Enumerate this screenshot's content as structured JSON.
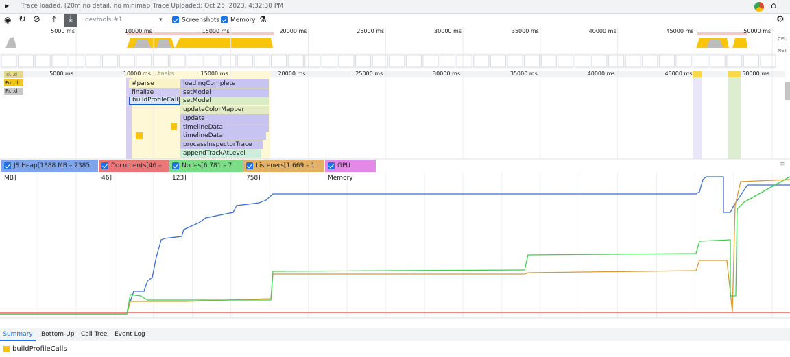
{
  "status": {
    "message": "Trace loaded. [20m no detail, no minimap]Trace Uploaded: Oct 25, 2023, 4:32:30 PM"
  },
  "toolbar": {
    "recording": "devtools #1",
    "checkboxes": [
      "Screenshots",
      "Memory"
    ]
  },
  "overview": {
    "ticks": [
      "5000 ms",
      "10000 ms",
      "15000 ms",
      "20000 ms",
      "25000 ms",
      "30000 ms",
      "35000 ms",
      "40000 ms",
      "45000 ms",
      "50000 ms"
    ],
    "labels": [
      "CPU",
      "NET"
    ]
  },
  "flamechart": {
    "ticks": [
      "5000 ms",
      "10000 ms",
      "15000 ms",
      "20000 ms",
      "25000 ms",
      "30000 ms",
      "35000 ms",
      "40000 ms",
      "45000 ms",
      "50000 ms"
    ],
    "tracks": [
      "Ti...d",
      "Fu...ll",
      "Pr...d"
    ],
    "header": "...tasks",
    "entries": [
      "#parse",
      "loadingComplete",
      "finalize",
      "setModel",
      "buildProfileCalls",
      "setModel",
      "updateColorMapper",
      "update",
      "timelineData",
      "timelineData",
      "processInspectorTrace",
      "appendTrackAtLevel"
    ]
  },
  "counters": [
    "JS Heap[1388 MB – 2385 MB]",
    "Documents[46 – 46]",
    "Nodes[6 781 – 7 123]",
    "Listeners[1 669 – 1 758]",
    "GPU Memory"
  ],
  "tabs": [
    "Summary",
    "Bottom-Up",
    "Call Tree",
    "Event Log"
  ],
  "summary": {
    "title": "buildProfileCalls"
  }
}
